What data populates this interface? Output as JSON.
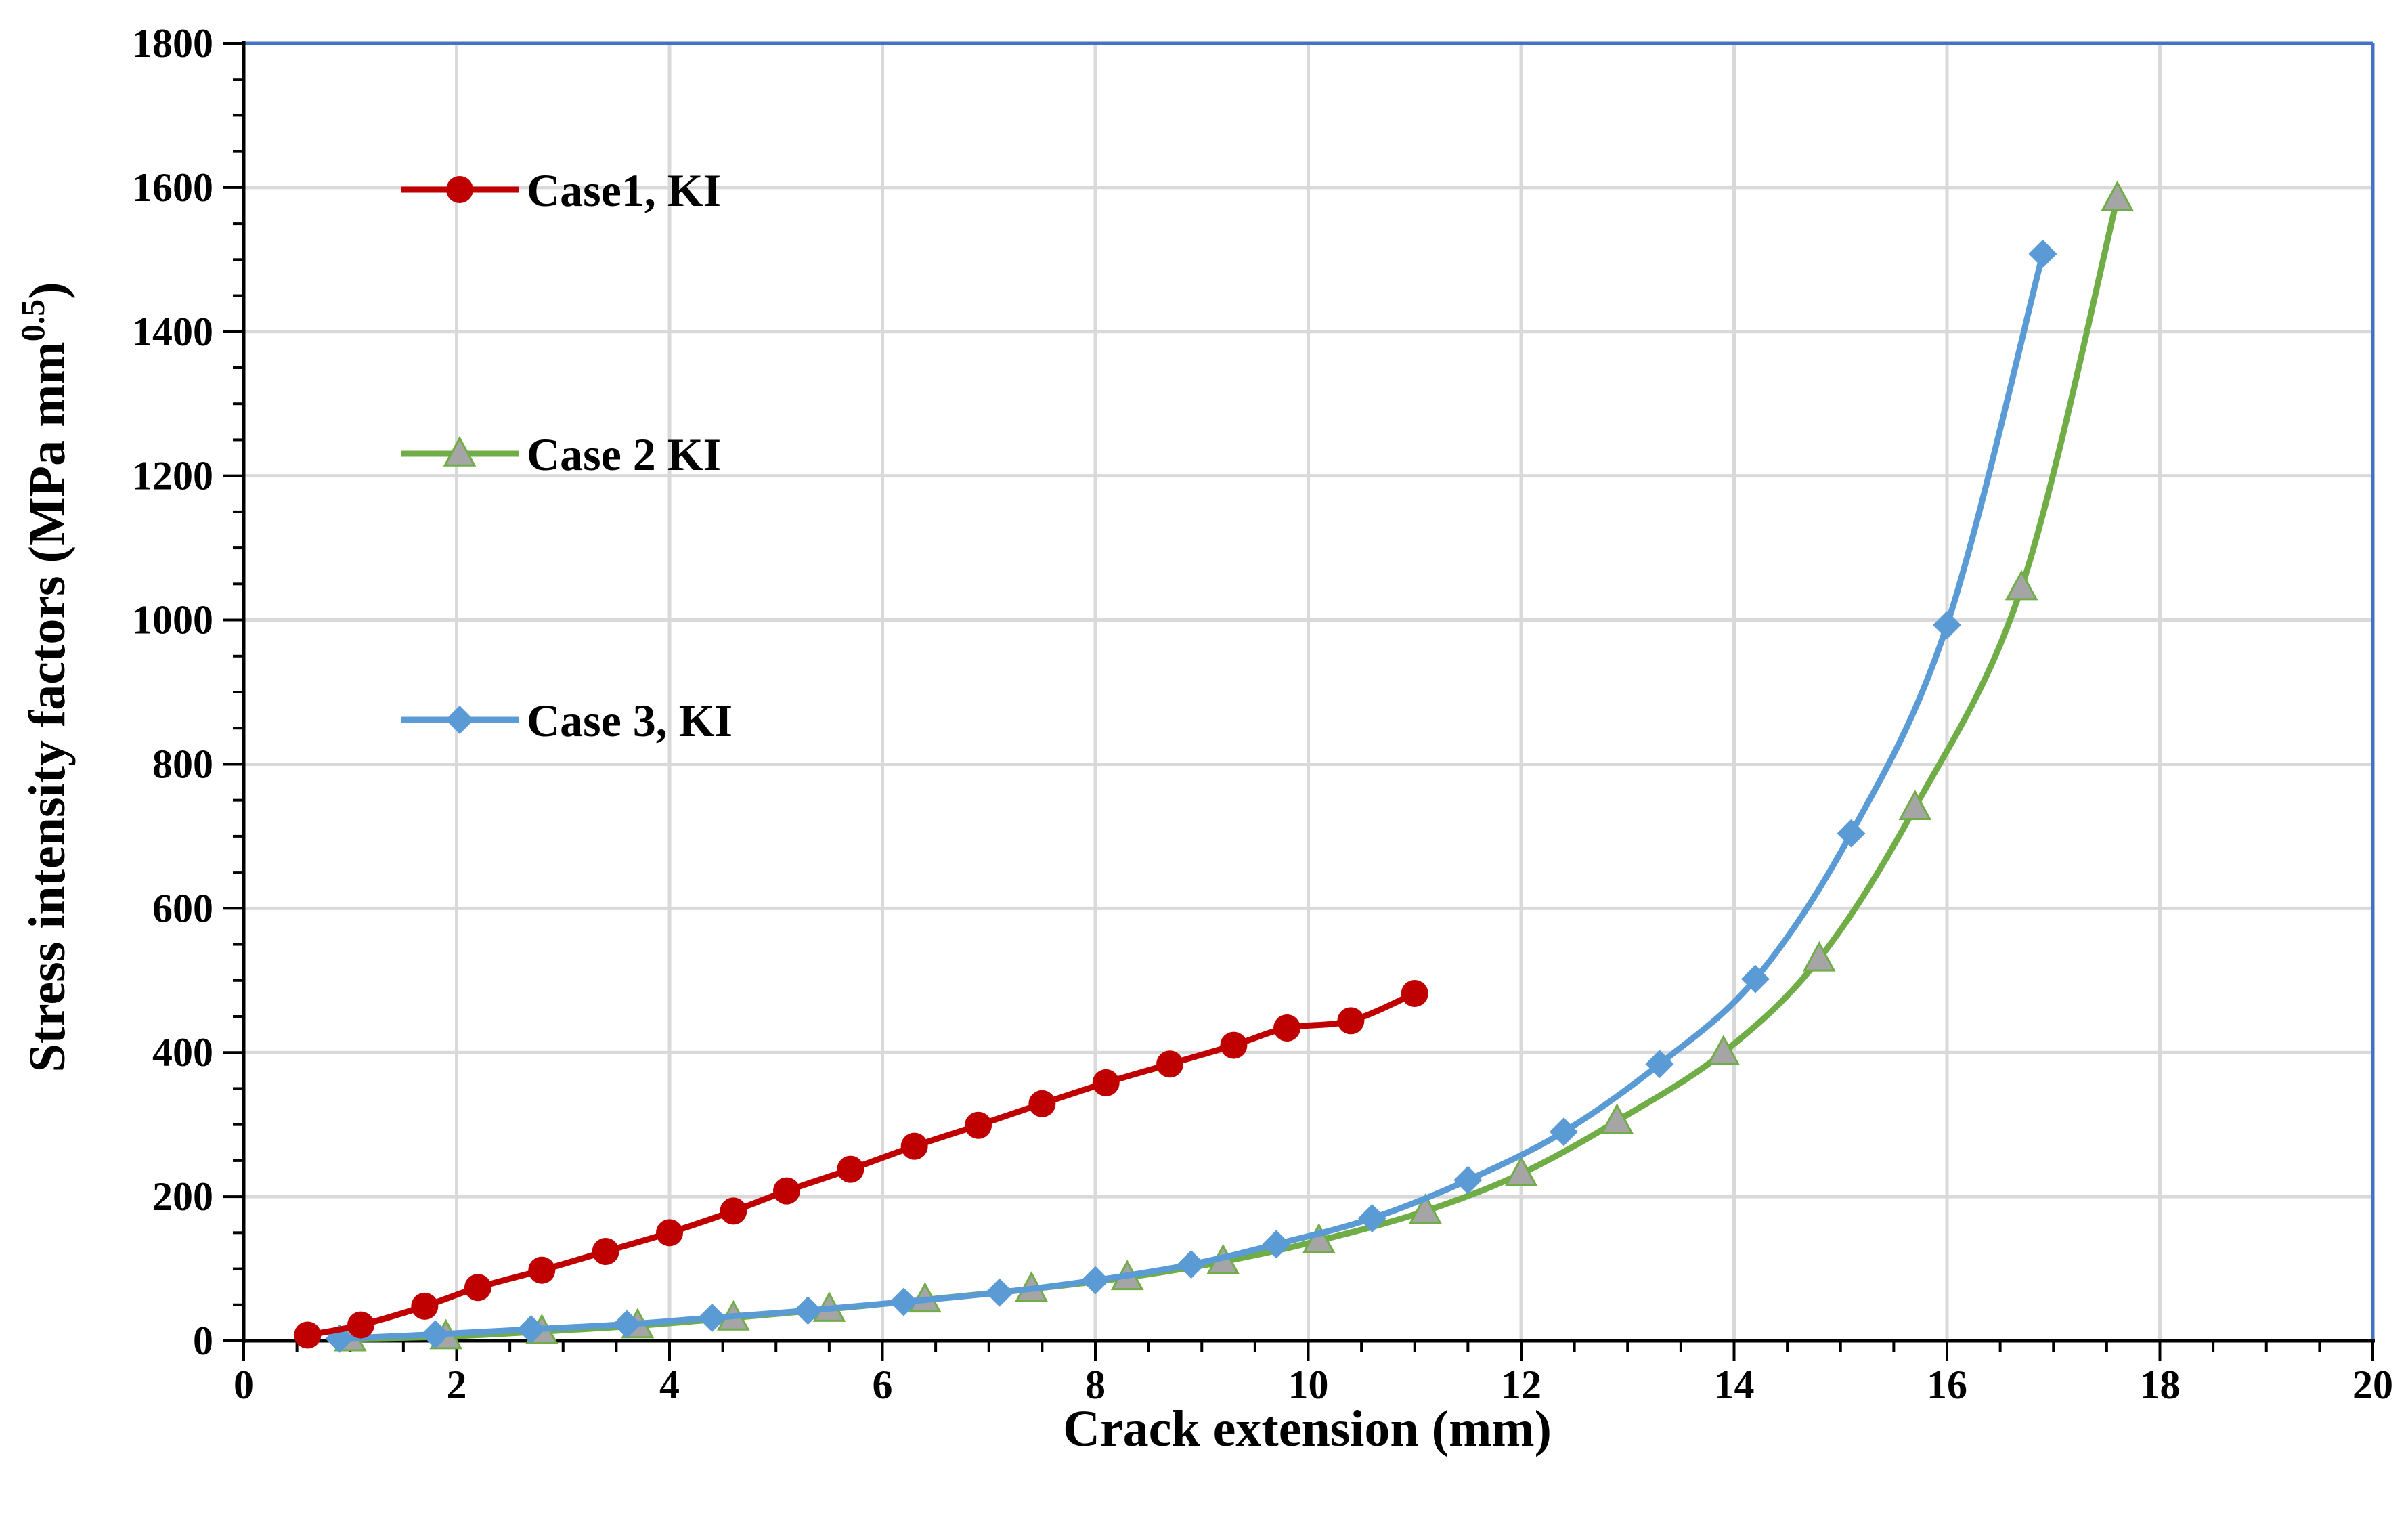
{
  "chart_data": {
    "type": "line",
    "title": "",
    "xlabel": "Crack extension (mm)",
    "ylabel_main": "Stress intensity factors (MPa mm",
    "ylabel_sup": "0.5",
    "ylabel_close": ")",
    "xlim": [
      0,
      20
    ],
    "ylim": [
      0,
      1800
    ],
    "xticks": [
      0,
      2,
      4,
      6,
      8,
      10,
      12,
      14,
      16,
      18,
      20
    ],
    "yticks": [
      0,
      200,
      400,
      600,
      800,
      1000,
      1200,
      1400,
      1600,
      1800
    ],
    "grid": true,
    "legend_position": "left",
    "series": [
      {
        "name": "Case1, KI",
        "color": "#c00000",
        "marker": "circle",
        "x": [
          0.6,
          1.1,
          1.7,
          2.2,
          2.8,
          3.4,
          4.0,
          4.6,
          5.1,
          5.7,
          6.3,
          6.9,
          7.5,
          8.1,
          8.7,
          9.3,
          9.8,
          10.4,
          11.0
        ],
        "y": [
          8,
          22,
          48,
          74,
          98,
          124,
          150,
          180,
          208,
          238,
          270,
          299,
          329,
          358,
          384,
          410,
          434,
          444,
          482
        ]
      },
      {
        "name": "Case 2 KI",
        "color": "#70ad47",
        "marker": "triangle",
        "marker_color": "#a5a5a5",
        "x": [
          1.0,
          1.9,
          2.8,
          3.7,
          4.6,
          5.5,
          6.4,
          7.4,
          8.3,
          9.2,
          10.1,
          11.1,
          12.0,
          12.9,
          13.9,
          14.8,
          15.7,
          16.7,
          17.6
        ],
        "y": [
          3,
          6,
          13,
          21,
          32,
          44,
          57,
          72,
          88,
          110,
          139,
          180,
          232,
          305,
          400,
          530,
          740,
          1045,
          1585
        ]
      },
      {
        "name": "Case 3, KI",
        "color": "#5b9bd5",
        "marker": "diamond",
        "x": [
          0.9,
          1.8,
          2.7,
          3.6,
          4.4,
          5.3,
          6.2,
          7.1,
          8.0,
          8.9,
          9.7,
          10.6,
          11.5,
          12.4,
          13.3,
          14.2,
          15.1,
          16.0,
          16.9
        ],
        "y": [
          3,
          9,
          16,
          23,
          32,
          42,
          54,
          67,
          84,
          106,
          134,
          170,
          223,
          290,
          384,
          502,
          704,
          993,
          1508
        ]
      }
    ]
  }
}
